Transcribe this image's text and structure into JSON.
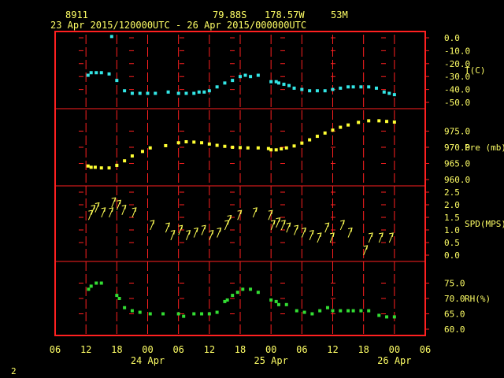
{
  "header": {
    "station": "8911",
    "lat": "79.88S",
    "lon": "178.57W",
    "elev": "53M",
    "period": "23 Apr 2015/120000UTC - 26 Apr 2015/000000UTC"
  },
  "page_number": "2",
  "colors": {
    "frame": "#ff2020",
    "text": "#ffff66",
    "temp": "#33e6e6",
    "pres": "#ffff33",
    "wind": "#ffff55",
    "rh": "#33dd33"
  },
  "chart_data": {
    "type": "scatter",
    "x_unit": "hours since 23 Apr 2015 06 UTC",
    "x_range": [
      0,
      72
    ],
    "x_tick_labels": [
      "06",
      "12",
      "18",
      "00",
      "06",
      "12",
      "18",
      "00",
      "06",
      "12",
      "18",
      "00",
      "06"
    ],
    "date_labels": [
      {
        "hour": 18,
        "text": "24 Apr"
      },
      {
        "hour": 42,
        "text": "25 Apr"
      },
      {
        "hour": 66,
        "text": "26 Apr"
      }
    ],
    "panels": [
      {
        "name": "T(C)",
        "label": "T(C)",
        "ylim": [
          -50,
          0
        ],
        "ticks": [
          "0.0",
          "-10.0",
          "-20.0",
          "-30.0",
          "-40.0",
          "-50.0"
        ],
        "tick_values": [
          0,
          -10,
          -20,
          -30,
          -40,
          -50
        ],
        "color_key": "temp",
        "points": [
          [
            6.4,
            -29
          ],
          [
            7,
            -27
          ],
          [
            8,
            -27
          ],
          [
            9,
            -27
          ],
          [
            10.5,
            -28
          ],
          [
            11,
            1
          ],
          [
            12,
            -33
          ],
          [
            13.5,
            -41
          ],
          [
            15,
            -43
          ],
          [
            16.5,
            -43
          ],
          [
            18,
            -43
          ],
          [
            19.5,
            -43
          ],
          [
            22,
            -42
          ],
          [
            24,
            -43
          ],
          [
            25.5,
            -43
          ],
          [
            27,
            -43
          ],
          [
            28,
            -42
          ],
          [
            29,
            -42
          ],
          [
            30,
            -41
          ],
          [
            31.5,
            -38
          ],
          [
            33,
            -35
          ],
          [
            34.5,
            -33
          ],
          [
            36,
            -30
          ],
          [
            37,
            -29
          ],
          [
            38,
            -30
          ],
          [
            39.5,
            -29
          ],
          [
            42,
            -34
          ],
          [
            43,
            -34
          ],
          [
            43.5,
            -35
          ],
          [
            44.5,
            -36
          ],
          [
            45.5,
            -37
          ],
          [
            46.5,
            -39
          ],
          [
            48,
            -40
          ],
          [
            49.5,
            -41
          ],
          [
            51,
            -41
          ],
          [
            52.5,
            -41
          ],
          [
            54,
            -40
          ],
          [
            55.5,
            -39
          ],
          [
            57,
            -38
          ],
          [
            58,
            -38
          ],
          [
            59.5,
            -38
          ],
          [
            61,
            -38
          ],
          [
            62.5,
            -39
          ],
          [
            64,
            -42
          ],
          [
            65,
            -43
          ],
          [
            66,
            -44
          ]
        ]
      },
      {
        "name": "Pre (mb)",
        "label": "Pre (mb)",
        "ylim": [
          960,
          980
        ],
        "ticks": [
          "975.0",
          "970.0",
          "965.0",
          "960.0"
        ],
        "tick_values": [
          975,
          970,
          965,
          960
        ],
        "color_key": "pres",
        "points": [
          [
            6.4,
            964.2
          ],
          [
            7,
            963.8
          ],
          [
            7.8,
            963.8
          ],
          [
            9,
            963.6
          ],
          [
            10.5,
            963.6
          ],
          [
            12,
            964.4
          ],
          [
            13.5,
            965.8
          ],
          [
            15,
            967.3
          ],
          [
            17,
            968.7
          ],
          [
            18.5,
            969.8
          ],
          [
            21.5,
            970.5
          ],
          [
            24,
            971.4
          ],
          [
            25.5,
            971.7
          ],
          [
            27,
            971.6
          ],
          [
            28.5,
            971.4
          ],
          [
            30,
            971.0
          ],
          [
            31.5,
            970.6
          ],
          [
            33,
            970.3
          ],
          [
            34.5,
            970.0
          ],
          [
            36,
            969.9
          ],
          [
            37.5,
            969.8
          ],
          [
            39.5,
            969.8
          ],
          [
            41.5,
            969.6
          ],
          [
            42,
            969.2
          ],
          [
            43,
            969.2
          ],
          [
            44,
            969.5
          ],
          [
            45,
            969.8
          ],
          [
            46.5,
            970.4
          ],
          [
            48,
            971.3
          ],
          [
            49.5,
            972.3
          ],
          [
            51,
            973.4
          ],
          [
            52.5,
            974.4
          ],
          [
            54,
            975.3
          ],
          [
            55.5,
            976.2
          ],
          [
            57,
            976.9
          ],
          [
            59,
            977.7
          ],
          [
            61,
            978.2
          ],
          [
            63,
            978.2
          ],
          [
            64.5,
            978.0
          ],
          [
            66,
            977.8
          ]
        ]
      },
      {
        "name": "SPD(MPS)",
        "label": "SPD(MPS)",
        "ylim": [
          0,
          2.5
        ],
        "ticks": [
          "2.5",
          "2.0",
          "1.5",
          "1.0",
          "0.5",
          "0.0"
        ],
        "tick_values": [
          2.5,
          2,
          1.5,
          1,
          0.5,
          0
        ],
        "color_key": "wind",
        "note": "wind arrows plotted at speed, pointing in flow direction",
        "points": [
          [
            6.5,
            1.4
          ],
          [
            7,
            1.6
          ],
          [
            7.8,
            1.7
          ],
          [
            9,
            1.5
          ],
          [
            10.5,
            1.5
          ],
          [
            11,
            1.9
          ],
          [
            12,
            1.8
          ],
          [
            13,
            1.6
          ],
          [
            15,
            1.5
          ],
          [
            18.5,
            1.0
          ],
          [
            21.5,
            0.9
          ],
          [
            22.5,
            0.6
          ],
          [
            24,
            0.8
          ],
          [
            25.5,
            0.6
          ],
          [
            27,
            0.7
          ],
          [
            28.5,
            0.8
          ],
          [
            30,
            0.6
          ],
          [
            31.5,
            0.7
          ],
          [
            33,
            1.0
          ],
          [
            33.5,
            1.2
          ],
          [
            35.5,
            1.4
          ],
          [
            38.5,
            1.5
          ],
          [
            41.5,
            1.4
          ],
          [
            42,
            1.0
          ],
          [
            43,
            1.1
          ],
          [
            44,
            1.0
          ],
          [
            45,
            0.9
          ],
          [
            46.5,
            0.8
          ],
          [
            48,
            0.7
          ],
          [
            49.5,
            0.6
          ],
          [
            51,
            0.5
          ],
          [
            52.5,
            0.9
          ],
          [
            53.5,
            0.5
          ],
          [
            55.5,
            1.0
          ],
          [
            57,
            0.7
          ],
          [
            60,
            0.0
          ],
          [
            61,
            0.5
          ],
          [
            63,
            0.5
          ],
          [
            65,
            0.5
          ]
        ]
      },
      {
        "name": "RH(%)",
        "label": "RH(%)",
        "ylim": [
          60,
          80
        ],
        "ticks": [
          "75.0",
          "70.0",
          "65.0",
          "60.0"
        ],
        "tick_values": [
          75,
          70,
          65,
          60
        ],
        "color_key": "rh",
        "points": [
          [
            6.5,
            73
          ],
          [
            7,
            74
          ],
          [
            8,
            75
          ],
          [
            9,
            75
          ],
          [
            12,
            71
          ],
          [
            12.5,
            70
          ],
          [
            13.5,
            67
          ],
          [
            15,
            66
          ],
          [
            16.5,
            65.5
          ],
          [
            18.5,
            65
          ],
          [
            21,
            65
          ],
          [
            24,
            65
          ],
          [
            25,
            64.2
          ],
          [
            27,
            65
          ],
          [
            28.5,
            65
          ],
          [
            30,
            65
          ],
          [
            31.5,
            65.5
          ],
          [
            33,
            69
          ],
          [
            33.5,
            69.5
          ],
          [
            34.5,
            71
          ],
          [
            35.5,
            72
          ],
          [
            36.5,
            73
          ],
          [
            38,
            73
          ],
          [
            39.5,
            72
          ],
          [
            42,
            69.5
          ],
          [
            43,
            69
          ],
          [
            43.5,
            68
          ],
          [
            45,
            68
          ],
          [
            47,
            66
          ],
          [
            48.5,
            65.5
          ],
          [
            50,
            65
          ],
          [
            51.5,
            66
          ],
          [
            53,
            67
          ],
          [
            54,
            66
          ],
          [
            55.5,
            66
          ],
          [
            57,
            66
          ],
          [
            58,
            66
          ],
          [
            59.5,
            66
          ],
          [
            61,
            66
          ],
          [
            63,
            64.5
          ],
          [
            64.5,
            64
          ],
          [
            66,
            64
          ]
        ]
      }
    ]
  }
}
